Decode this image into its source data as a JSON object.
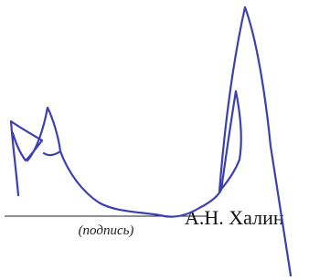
{
  "signature": {
    "name": "А.Н. Халин",
    "caption": "(подпись)"
  }
}
